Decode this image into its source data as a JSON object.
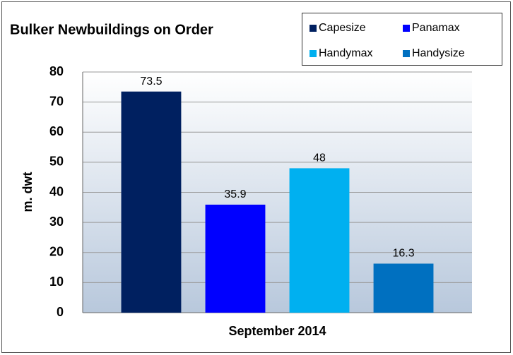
{
  "chart_data": {
    "type": "bar",
    "title": "Bulker Newbuildings on Order",
    "categories": [
      "September 2014"
    ],
    "series": [
      {
        "name": "Capesize",
        "color": "#002060",
        "values": [
          73.5
        ]
      },
      {
        "name": "Panamax",
        "color": "#0000ff",
        "values": [
          35.9
        ]
      },
      {
        "name": "Handymax",
        "color": "#00b0f0",
        "values": [
          48
        ]
      },
      {
        "name": "Handysize",
        "color": "#0070c0",
        "values": [
          16.3
        ]
      }
    ],
    "y_label": "m. dwt",
    "ylim": [
      0,
      80
    ],
    "yticks": [
      0,
      10,
      20,
      30,
      40,
      50,
      60,
      70,
      80
    ],
    "grid": true
  }
}
